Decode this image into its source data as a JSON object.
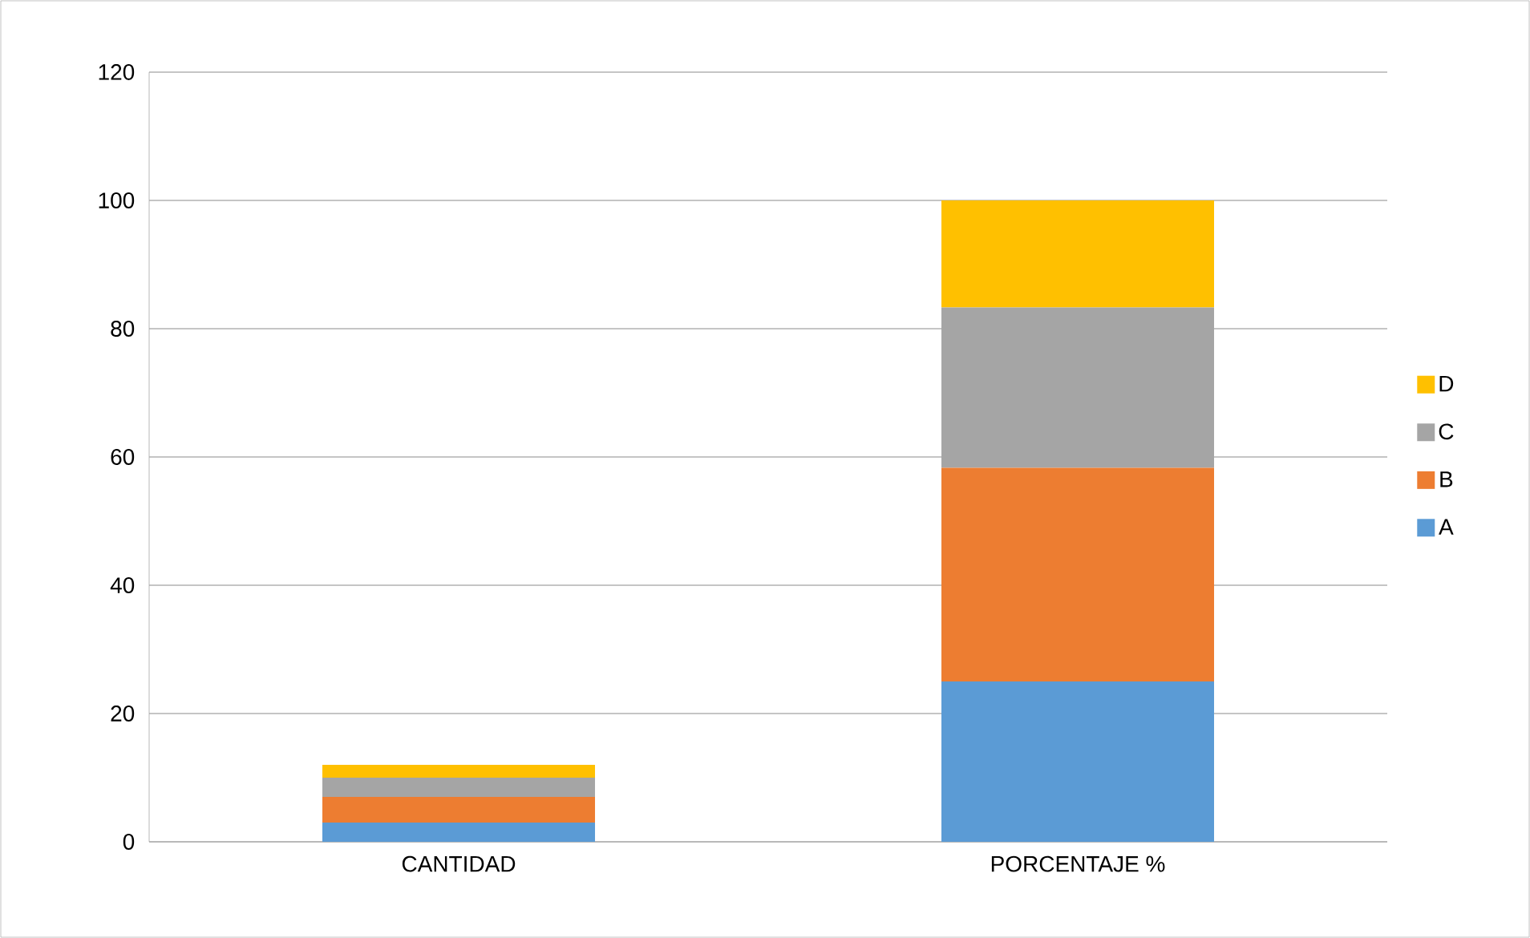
{
  "chart_data": {
    "type": "bar",
    "stacked": true,
    "categories": [
      "CANTIDAD",
      "PORCENTAJE %"
    ],
    "series": [
      {
        "name": "A",
        "color": "#5b9bd5",
        "values": [
          3,
          25
        ]
      },
      {
        "name": "B",
        "color": "#ed7d31",
        "values": [
          4,
          33.3
        ]
      },
      {
        "name": "C",
        "color": "#a5a5a5",
        "values": [
          3,
          25
        ]
      },
      {
        "name": "D",
        "color": "#ffc000",
        "values": [
          2,
          16.7
        ]
      }
    ],
    "ylim": [
      0,
      120
    ],
    "yticks": [
      0,
      20,
      40,
      60,
      80,
      100,
      120
    ],
    "grid": "y",
    "legend": "right"
  }
}
